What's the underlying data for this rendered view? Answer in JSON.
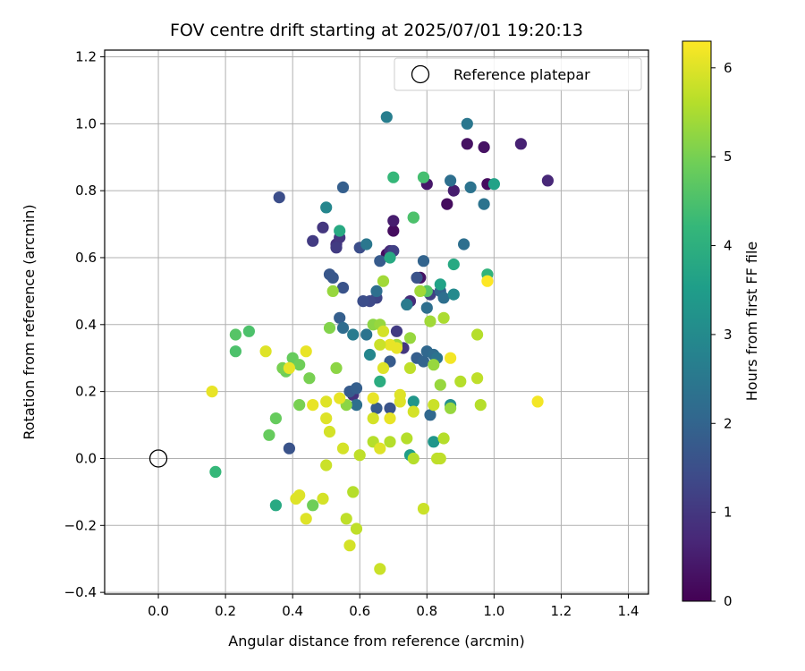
{
  "chart_data": {
    "type": "scatter",
    "title": "FOV centre drift starting at 2025/07/01 19:20:13",
    "xlabel": "Angular distance from reference (arcmin)",
    "ylabel": "Rotation from reference (arcmin)",
    "xlim": [
      -0.16,
      1.46
    ],
    "ylim": [
      -0.405,
      1.22
    ],
    "xticks": [
      0.0,
      0.2,
      0.4,
      0.6,
      0.8,
      1.0,
      1.2,
      1.4
    ],
    "xtick_labels": [
      "0.0",
      "0.2",
      "0.4",
      "0.6",
      "0.8",
      "1.0",
      "1.2",
      "1.4"
    ],
    "yticks": [
      -0.4,
      -0.2,
      0.0,
      0.2,
      0.4,
      0.6,
      0.8,
      1.0,
      1.2
    ],
    "ytick_labels": [
      "−0.4",
      "−0.2",
      "0.0",
      "0.2",
      "0.4",
      "0.6",
      "0.8",
      "1.0",
      "1.2"
    ],
    "grid": true,
    "legend": {
      "placement": "top-right",
      "entries": [
        "Reference platepar"
      ]
    },
    "reference_point": {
      "x": 0.0,
      "y": 0.0,
      "marker": "open-circle"
    },
    "colorbar": {
      "label": "Hours from first FF file",
      "range": [
        0,
        6.3
      ],
      "ticks": [
        0,
        1,
        2,
        3,
        4,
        5,
        6
      ],
      "tick_labels": [
        "0",
        "1",
        "2",
        "3",
        "4",
        "5",
        "6"
      ],
      "colormap": "viridis"
    },
    "points": [
      [
        0.68,
        0.61,
        0.2
      ],
      [
        0.7,
        0.68,
        0.2
      ],
      [
        0.7,
        0.71,
        0.5
      ],
      [
        0.69,
        0.62,
        0.8
      ],
      [
        0.8,
        0.82,
        0.4
      ],
      [
        0.86,
        0.76,
        0.2
      ],
      [
        0.92,
        0.94,
        0.3
      ],
      [
        0.97,
        0.93,
        0.3
      ],
      [
        0.98,
        0.82,
        0.2
      ],
      [
        1.08,
        0.94,
        0.6
      ],
      [
        1.16,
        0.83,
        0.7
      ],
      [
        0.88,
        0.8,
        0.5
      ],
      [
        0.78,
        0.54,
        0.3
      ],
      [
        0.53,
        0.64,
        0.9
      ],
      [
        0.54,
        0.66,
        1.0
      ],
      [
        0.49,
        0.69,
        1.0
      ],
      [
        0.46,
        0.65,
        1.1
      ],
      [
        0.36,
        0.78,
        1.5
      ],
      [
        0.58,
        0.19,
        0.9
      ],
      [
        0.75,
        0.47,
        0.8
      ],
      [
        0.71,
        0.38,
        1.1
      ],
      [
        0.53,
        0.63,
        1.1
      ],
      [
        0.7,
        0.62,
        1.2
      ],
      [
        0.81,
        0.49,
        1.2
      ],
      [
        0.73,
        0.33,
        1.0
      ],
      [
        0.65,
        0.48,
        1.3
      ],
      [
        0.6,
        0.63,
        1.5
      ],
      [
        0.63,
        0.47,
        1.4
      ],
      [
        0.61,
        0.47,
        1.5
      ],
      [
        0.77,
        0.54,
        1.6
      ],
      [
        0.55,
        0.51,
        1.6
      ],
      [
        0.51,
        0.55,
        1.7
      ],
      [
        0.52,
        0.54,
        1.7
      ],
      [
        0.74,
        0.46,
        1.7
      ],
      [
        0.69,
        0.29,
        1.8
      ],
      [
        0.66,
        0.59,
        1.8
      ],
      [
        0.57,
        0.2,
        1.8
      ],
      [
        0.59,
        0.21,
        1.9
      ],
      [
        0.54,
        0.42,
        1.9
      ],
      [
        0.55,
        0.81,
        1.9
      ],
      [
        0.39,
        0.03,
        1.6
      ],
      [
        0.65,
        0.15,
        1.8
      ],
      [
        0.69,
        0.15,
        1.6
      ],
      [
        0.77,
        0.3,
        1.9
      ],
      [
        0.79,
        0.29,
        2.0
      ],
      [
        0.79,
        0.59,
        2.0
      ],
      [
        0.84,
        0.5,
        2.0
      ],
      [
        0.8,
        0.32,
        2.1
      ],
      [
        0.82,
        0.31,
        2.2
      ],
      [
        0.81,
        0.13,
        2.1
      ],
      [
        0.59,
        0.16,
        2.3
      ],
      [
        0.65,
        0.5,
        2.3
      ],
      [
        0.62,
        0.37,
        2.4
      ],
      [
        0.62,
        0.64,
        2.5
      ],
      [
        0.55,
        0.39,
        2.2
      ],
      [
        0.8,
        0.45,
        2.3
      ],
      [
        0.83,
        0.3,
        2.4
      ],
      [
        0.85,
        0.48,
        2.3
      ],
      [
        0.87,
        0.83,
        2.3
      ],
      [
        0.91,
        0.64,
        2.3
      ],
      [
        0.93,
        0.81,
        2.4
      ],
      [
        0.97,
        0.76,
        2.4
      ],
      [
        0.92,
        1.0,
        2.5
      ],
      [
        0.68,
        1.02,
        2.7
      ],
      [
        0.5,
        0.75,
        2.9
      ],
      [
        0.58,
        0.37,
        2.6
      ],
      [
        0.63,
        0.31,
        2.9
      ],
      [
        0.74,
        0.46,
        2.6
      ],
      [
        0.88,
        0.49,
        3.0
      ],
      [
        0.87,
        0.16,
        3.1
      ],
      [
        0.76,
        0.17,
        3.3
      ],
      [
        0.75,
        0.01,
        3.5
      ],
      [
        0.82,
        0.05,
        3.3
      ],
      [
        0.84,
        0.52,
        3.6
      ],
      [
        0.88,
        0.58,
        3.8
      ],
      [
        0.69,
        0.6,
        3.8
      ],
      [
        0.76,
        0.72,
        3.8
      ],
      [
        0.54,
        0.68,
        3.8
      ],
      [
        0.66,
        0.23,
        3.9
      ],
      [
        1.0,
        0.82,
        3.6
      ],
      [
        0.98,
        0.55,
        4.1
      ],
      [
        0.7,
        0.84,
        4.2
      ],
      [
        0.79,
        0.84,
        4.4
      ],
      [
        0.17,
        -0.04,
        4.2
      ],
      [
        0.76,
        0.72,
        4.5
      ],
      [
        0.8,
        0.5,
        4.6
      ],
      [
        0.35,
        -0.14,
        3.8
      ],
      [
        0.27,
        0.38,
        4.5
      ],
      [
        0.23,
        0.32,
        4.5
      ],
      [
        0.23,
        0.37,
        4.6
      ],
      [
        0.33,
        0.07,
        4.8
      ],
      [
        0.35,
        0.12,
        4.8
      ],
      [
        0.38,
        0.26,
        4.9
      ],
      [
        0.4,
        0.3,
        4.8
      ],
      [
        0.42,
        0.28,
        4.9
      ],
      [
        0.46,
        -0.14,
        4.9
      ],
      [
        0.45,
        0.24,
        5.0
      ],
      [
        0.42,
        0.16,
        5.0
      ],
      [
        0.37,
        0.27,
        5.0
      ],
      [
        0.51,
        0.39,
        5.1
      ],
      [
        0.53,
        0.27,
        5.2
      ],
      [
        0.56,
        0.16,
        5.2
      ],
      [
        0.52,
        0.5,
        5.3
      ],
      [
        0.64,
        0.4,
        5.2
      ],
      [
        0.66,
        0.4,
        5.3
      ],
      [
        0.67,
        0.53,
        5.4
      ],
      [
        0.71,
        0.34,
        5.4
      ],
      [
        0.75,
        0.36,
        5.3
      ],
      [
        0.78,
        0.5,
        5.4
      ],
      [
        0.81,
        0.41,
        5.4
      ],
      [
        0.82,
        0.28,
        5.3
      ],
      [
        0.84,
        0.22,
        5.3
      ],
      [
        0.85,
        0.42,
        5.5
      ],
      [
        0.87,
        0.15,
        5.3
      ],
      [
        0.9,
        0.23,
        5.6
      ],
      [
        0.95,
        0.37,
        5.6
      ],
      [
        0.95,
        0.24,
        5.7
      ],
      [
        0.96,
        0.16,
        5.6
      ],
      [
        0.85,
        0.06,
        5.6
      ],
      [
        0.83,
        0.0,
        5.7
      ],
      [
        0.84,
        0.0,
        5.7
      ],
      [
        0.76,
        0.0,
        5.6
      ],
      [
        0.74,
        0.06,
        5.6
      ],
      [
        0.69,
        0.05,
        5.6
      ],
      [
        0.64,
        0.05,
        5.6
      ],
      [
        0.6,
        0.01,
        5.7
      ],
      [
        0.58,
        -0.1,
        5.6
      ],
      [
        0.59,
        -0.21,
        5.7
      ],
      [
        0.56,
        -0.18,
        5.7
      ],
      [
        0.5,
        -0.02,
        5.8
      ],
      [
        0.51,
        0.08,
        5.9
      ],
      [
        0.55,
        0.03,
        5.9
      ],
      [
        0.64,
        0.12,
        5.9
      ],
      [
        0.66,
        0.03,
        6.0
      ],
      [
        0.79,
        -0.15,
        5.8
      ],
      [
        0.66,
        -0.33,
        5.8
      ],
      [
        0.57,
        -0.26,
        5.9
      ],
      [
        0.44,
        -0.18,
        6.0
      ],
      [
        0.49,
        -0.12,
        5.9
      ],
      [
        0.41,
        -0.12,
        6.0
      ],
      [
        0.42,
        -0.11,
        6.0
      ],
      [
        0.5,
        0.12,
        6.0
      ],
      [
        0.5,
        0.17,
        6.0
      ],
      [
        0.46,
        0.16,
        6.1
      ],
      [
        0.54,
        0.18,
        6.1
      ],
      [
        0.44,
        0.32,
        6.1
      ],
      [
        0.32,
        0.32,
        6.0
      ],
      [
        0.64,
        0.18,
        6.1
      ],
      [
        0.69,
        0.12,
        6.1
      ],
      [
        0.67,
        0.38,
        5.9
      ],
      [
        0.69,
        0.34,
        6.1
      ],
      [
        0.72,
        0.19,
        6.0
      ],
      [
        0.72,
        0.17,
        6.0
      ],
      [
        0.67,
        0.27,
        6.0
      ],
      [
        0.66,
        0.34,
        5.8
      ],
      [
        0.75,
        0.27,
        5.7
      ],
      [
        0.82,
        0.16,
        5.8
      ],
      [
        0.76,
        0.14,
        5.9
      ],
      [
        0.87,
        0.3,
        6.2
      ],
      [
        0.98,
        0.53,
        6.3
      ],
      [
        1.13,
        0.17,
        6.2
      ],
      [
        0.16,
        0.2,
        6.1
      ],
      [
        0.39,
        0.27,
        6.1
      ],
      [
        0.71,
        0.33,
        6.1
      ]
    ]
  }
}
